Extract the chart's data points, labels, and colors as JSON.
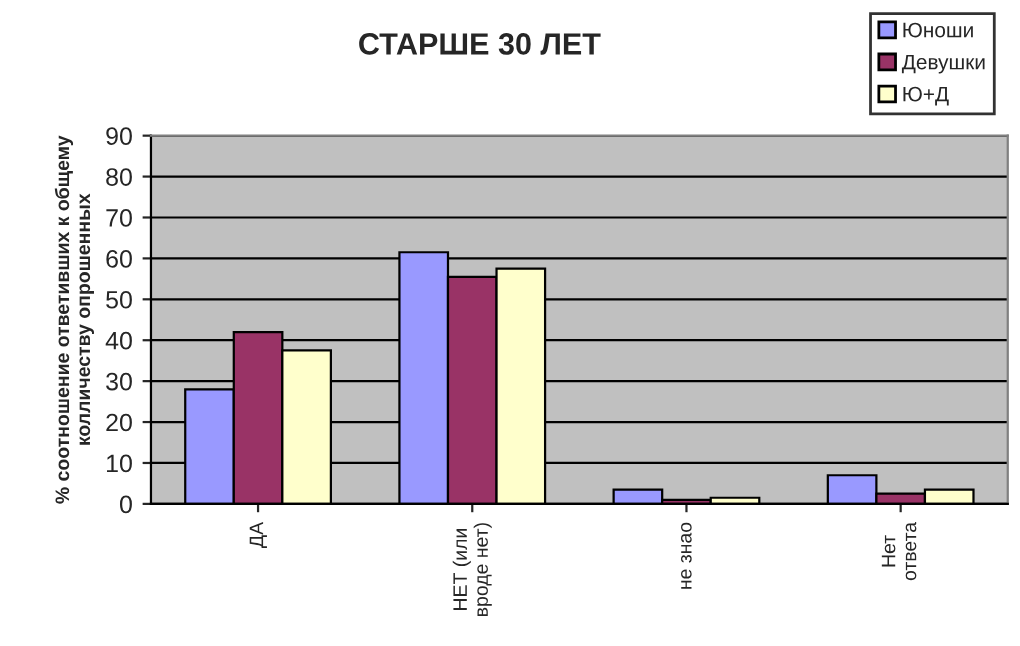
{
  "chart_data": {
    "type": "bar",
    "title": "СТАРШЕ 30 ЛЕТ",
    "ylabel": "% соотношение ответивших к общему\nколличеству опрошенных",
    "categories": [
      "ДА",
      "НЕТ (или\nвроде нет)",
      "не знао",
      "Нет\nответа"
    ],
    "series": [
      {
        "name": "Юноши",
        "color": "#9999ff",
        "values": [
          28,
          61.5,
          3.5,
          7
        ]
      },
      {
        "name": "Девушки",
        "color": "#993366",
        "values": [
          42,
          55.5,
          1,
          2.5
        ]
      },
      {
        "name": "Ю+Д",
        "color": "#ffffcc",
        "values": [
          37.5,
          57.5,
          1.5,
          3.5
        ]
      }
    ],
    "ylim": [
      0,
      90
    ],
    "yticks": [
      0,
      10,
      20,
      30,
      40,
      50,
      60,
      70,
      80,
      90
    ],
    "grid": "y",
    "legend": "top right"
  }
}
